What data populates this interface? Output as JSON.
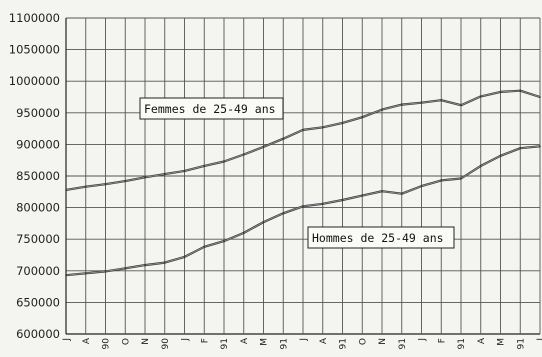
{
  "chart_data": {
    "type": "line",
    "ylim": [
      600000,
      1100000
    ],
    "y_ticks": [
      600000,
      650000,
      700000,
      750000,
      800000,
      850000,
      900000,
      950000,
      1000000,
      1050000,
      1100000
    ],
    "y_tick_labels": [
      "600000",
      "650000",
      "700000",
      "750000",
      "800000",
      "850000",
      "900000",
      "950000",
      "1000000",
      "1050000",
      "1100000"
    ],
    "x_tick_labels": [
      "J",
      "A",
      "90",
      "O",
      "N",
      "90",
      "J",
      "F",
      "91",
      "A",
      "M",
      "91",
      "J",
      "A",
      "91",
      "O",
      "N",
      "91",
      "J",
      "F",
      "91",
      "A",
      "M",
      "91",
      "J"
    ],
    "grid": true,
    "series": [
      {
        "name": "Femmes de 25-49 ans",
        "values": [
          828000,
          833000,
          837000,
          842000,
          848000,
          853000,
          858000,
          866000,
          873000,
          884000,
          896000,
          909000,
          923000,
          927000,
          934000,
          943000,
          955000,
          963000,
          966000,
          970000,
          962000,
          976000,
          983000,
          985000,
          975000
        ]
      },
      {
        "name": "Hommes de 25-49 ans",
        "values": [
          693000,
          696000,
          699000,
          704000,
          709000,
          713000,
          722000,
          738000,
          747000,
          760000,
          777000,
          791000,
          802000,
          806000,
          812000,
          819000,
          826000,
          822000,
          834000,
          843000,
          846000,
          866000,
          882000,
          894000,
          897000
        ]
      }
    ]
  }
}
